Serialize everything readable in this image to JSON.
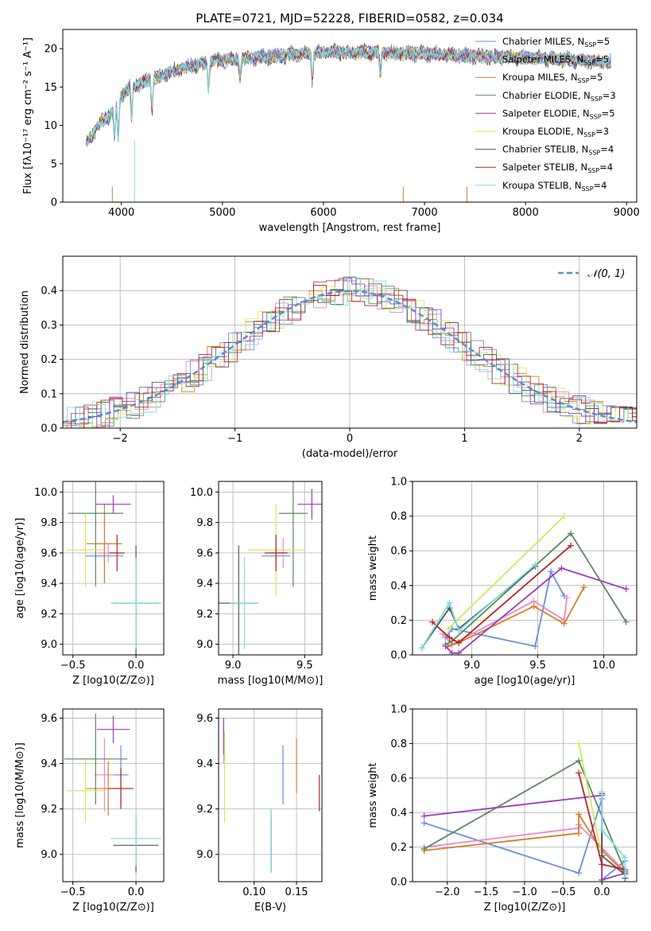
{
  "colors": [
    "#6a8fdb",
    "#e889c8",
    "#db7a2a",
    "#5a8a5e",
    "#9b3cb8",
    "#cfea5a",
    "#555555",
    "#b52525",
    "#7fdce4"
  ],
  "chart_data": [
    {
      "id": "spectrum",
      "type": "line",
      "title": "PLATE=0721, MJD=52228, FIBERID=0582, z=0.034",
      "xlabel": "wavelength [Angstrom, rest frame]",
      "ylabel": "Flux [fλ10⁻¹⁷ erg cm⁻² s⁻¹ A⁻¹]",
      "xlim": [
        3420,
        9100
      ],
      "ylim": [
        0,
        22.5
      ],
      "xticks": [
        4000,
        5000,
        6000,
        7000,
        8000,
        9000
      ],
      "yticks": [
        0,
        5,
        10,
        15,
        20
      ],
      "legend_position": "upper-right",
      "series": [
        {
          "name": "Chabrier MILES, N_SSP=5"
        },
        {
          "name": "Salpeter MILES, N_SSP=5"
        },
        {
          "name": "Kroupa MILES, N_SSP=5"
        },
        {
          "name": "Chabrier ELODIE, N_SSP=3"
        },
        {
          "name": "Salpeter ELODIE, N_SSP=5"
        },
        {
          "name": "Kroupa ELODIE, N_SSP=3"
        },
        {
          "name": "Chabrier STELIB, N_SSP=4"
        },
        {
          "name": "Salpeter STELIB, N_SSP=4"
        },
        {
          "name": "Kroupa STELIB, N_SSP=4"
        }
      ],
      "continuum": [
        [
          3650,
          8
        ],
        [
          3700,
          8.5
        ],
        [
          3800,
          10.5
        ],
        [
          3900,
          11.5
        ],
        [
          4000,
          14
        ],
        [
          4100,
          15
        ],
        [
          4200,
          15.5
        ],
        [
          4300,
          16
        ],
        [
          4500,
          17
        ],
        [
          4700,
          17.8
        ],
        [
          5000,
          18.5
        ],
        [
          5500,
          19
        ],
        [
          6000,
          19.5
        ],
        [
          6500,
          19.5
        ],
        [
          7000,
          19.3
        ],
        [
          7500,
          19
        ],
        [
          8000,
          18.8
        ],
        [
          8500,
          18.5
        ],
        [
          8850,
          18.2
        ]
      ]
    },
    {
      "id": "residuals",
      "type": "bar",
      "xlabel": "(data-model)/error",
      "ylabel": "Normed distribution",
      "xlim": [
        -2.5,
        2.5
      ],
      "ylim": [
        0,
        0.5
      ],
      "xticks": [
        -2,
        -1,
        0,
        1,
        2
      ],
      "yticks": [
        0.0,
        0.1,
        0.2,
        0.3,
        0.4
      ],
      "grid": true,
      "legend_position": "upper-right",
      "reference": {
        "name": "𝒩(0, 1)",
        "mean": 0,
        "sigma": 1
      }
    },
    {
      "id": "age-vs-Z",
      "type": "scatter",
      "xlabel": "Z [log10(Z/Z⊙)]",
      "ylabel": "age  [log10(age/yr)]",
      "xlim": [
        -0.58,
        0.22
      ],
      "ylim": [
        8.93,
        10.07
      ],
      "xticks": [
        -0.5,
        0.0
      ],
      "yticks": [
        9.0,
        9.2,
        9.4,
        9.6,
        9.8,
        10.0
      ],
      "grid": true,
      "points": [
        {
          "x": -0.25,
          "y": 9.58,
          "xerr": 0.15,
          "yerr": 0.05
        },
        {
          "x": -0.22,
          "y": 9.6,
          "xerr": 0.08,
          "yerr": 0.06
        },
        {
          "x": -0.25,
          "y": 9.66,
          "xerr": 0.14,
          "yerr": 0.26
        },
        {
          "x": -0.32,
          "y": 9.86,
          "xerr": 0.22,
          "yerr": 0.48
        },
        {
          "x": -0.18,
          "y": 9.92,
          "xerr": 0.14,
          "yerr": 0.06
        },
        {
          "x": -0.4,
          "y": 9.62,
          "xerr": 0.15,
          "yerr": 0.24
        },
        {
          "x": 0.0,
          "y": 9.27,
          "xerr": 0.18,
          "yerr": 0.38
        },
        {
          "x": -0.15,
          "y": 9.6,
          "xerr": 0.06,
          "yerr": 0.12
        },
        {
          "x": 0.0,
          "y": 9.27,
          "xerr": 0.2,
          "yerr": 0.3
        }
      ]
    },
    {
      "id": "age-vs-mass",
      "type": "scatter",
      "xlabel": "mass [log10(M/M⊙)]",
      "ylabel": "",
      "xlim": [
        8.9,
        9.62
      ],
      "ylim": [
        8.93,
        10.07
      ],
      "xticks": [
        9.0,
        9.5
      ],
      "yticks": [
        9.0,
        9.2,
        9.4,
        9.6,
        9.8,
        10.0
      ],
      "grid": true,
      "points": [
        {
          "x": 9.3,
          "y": 9.58,
          "xerr": 0.1,
          "yerr": 0.05
        },
        {
          "x": 9.35,
          "y": 9.6,
          "xerr": 0.05,
          "yerr": 0.1
        },
        {
          "x": 9.3,
          "y": 9.6,
          "xerr": 0.05,
          "yerr": 0.1
        },
        {
          "x": 9.42,
          "y": 9.86,
          "xerr": 0.1,
          "yerr": 0.48
        },
        {
          "x": 9.55,
          "y": 9.92,
          "xerr": 0.1,
          "yerr": 0.1
        },
        {
          "x": 9.3,
          "y": 9.62,
          "xerr": 0.2,
          "yerr": 0.3
        },
        {
          "x": 9.04,
          "y": 9.27,
          "xerr": 0.14,
          "yerr": 0.38
        },
        {
          "x": 9.3,
          "y": 9.6,
          "xerr": 0.08,
          "yerr": 0.12
        },
        {
          "x": 9.08,
          "y": 9.27,
          "xerr": 0.1,
          "yerr": 0.3
        }
      ]
    },
    {
      "id": "weight-vs-age",
      "type": "line",
      "xlabel": "age  [log10(age/yr)]",
      "ylabel": "mass weight",
      "xlim": [
        8.55,
        10.25
      ],
      "ylim": [
        0,
        1
      ],
      "xticks": [
        9.0,
        9.5,
        10.0
      ],
      "yticks": [
        0.0,
        0.2,
        0.4,
        0.6,
        0.8,
        1.0
      ],
      "grid": true,
      "series": [
        {
          "x": [
            8.8,
            8.85,
            9.48,
            9.6,
            9.7
          ],
          "y": [
            0.1,
            0.15,
            0.05,
            0.48,
            0.34
          ]
        },
        {
          "x": [
            8.78,
            8.85,
            9.47,
            9.7,
            9.72
          ],
          "y": [
            0.12,
            0.06,
            0.31,
            0.2,
            0.33
          ]
        },
        {
          "x": [
            8.82,
            8.9,
            9.47,
            9.7,
            9.85
          ],
          "y": [
            0.05,
            0.07,
            0.28,
            0.18,
            0.39
          ]
        },
        {
          "x": [
            8.8,
            8.85,
            9.75,
            10.17
          ],
          "y": [
            0.06,
            0.08,
            0.7,
            0.19
          ]
        },
        {
          "x": [
            8.8,
            8.85,
            8.9,
            9.68,
            10.17
          ],
          "y": [
            0.05,
            0.01,
            0.01,
            0.5,
            0.38
          ]
        },
        {
          "x": [
            8.82,
            9.7
          ],
          "y": [
            0.15,
            0.8
          ]
        },
        {
          "x": [
            8.62,
            8.83,
            8.9,
            9.48
          ],
          "y": [
            0.04,
            0.27,
            0.15,
            0.51
          ]
        },
        {
          "x": [
            8.7,
            8.83,
            8.9,
            9.75
          ],
          "y": [
            0.19,
            0.1,
            0.07,
            0.63
          ]
        },
        {
          "x": [
            8.62,
            8.83,
            8.9,
            9.48
          ],
          "y": [
            0.04,
            0.3,
            0.14,
            0.52
          ]
        }
      ]
    },
    {
      "id": "mass-vs-Z",
      "type": "scatter",
      "xlabel": "Z [log10(Z/Z⊙)]",
      "ylabel": "mass [log10(M/M⊙)]",
      "xlim": [
        -0.58,
        0.22
      ],
      "ylim": [
        8.88,
        9.64
      ],
      "xticks": [
        -0.5,
        0.0
      ],
      "yticks": [
        9.0,
        9.2,
        9.4,
        9.6
      ],
      "grid": true,
      "points": [
        {
          "x": -0.12,
          "y": 9.35,
          "xerr": 0.06,
          "yerr": 0.13
        },
        {
          "x": -0.25,
          "y": 9.35,
          "xerr": 0.08,
          "yerr": 0.16
        },
        {
          "x": -0.22,
          "y": 9.29,
          "xerr": 0.18,
          "yerr": 0.12
        },
        {
          "x": -0.32,
          "y": 9.42,
          "xerr": 0.25,
          "yerr": 0.2
        },
        {
          "x": -0.18,
          "y": 9.55,
          "xerr": 0.13,
          "yerr": 0.06
        },
        {
          "x": -0.4,
          "y": 9.28,
          "xerr": 0.15,
          "yerr": 0.14
        },
        {
          "x": 0.0,
          "y": 9.04,
          "xerr": 0.18,
          "yerr": 0.12
        },
        {
          "x": -0.12,
          "y": 9.29,
          "xerr": 0.1,
          "yerr": 0.09
        },
        {
          "x": 0.0,
          "y": 9.07,
          "xerr": 0.2,
          "yerr": 0.12
        }
      ]
    },
    {
      "id": "mass-vs-ebv",
      "type": "scatter",
      "xlabel": "E(B-V)",
      "ylabel": "",
      "xlim": [
        0.058,
        0.18
      ],
      "ylim": [
        8.88,
        9.64
      ],
      "xticks": [
        0.1,
        0.15
      ],
      "yticks": [
        9.0,
        9.2,
        9.4,
        9.6
      ],
      "grid": true,
      "points": [
        {
          "x": 0.134,
          "y": 9.35,
          "yerr": 0.13
        },
        {
          "x": 0.064,
          "y": 9.5,
          "yerr": 0.1
        },
        {
          "x": 0.15,
          "y": 9.39,
          "yerr": 0.12
        },
        {
          "x": 0.12,
          "y": 9.05,
          "yerr": 0.13
        },
        {
          "x": 0.064,
          "y": 9.52,
          "yerr": 0.08
        },
        {
          "x": 0.065,
          "y": 9.34,
          "yerr": 0.2
        },
        {
          "x": 0.12,
          "y": 9.04,
          "yerr": 0.12
        },
        {
          "x": 0.177,
          "y": 9.27,
          "yerr": 0.08
        },
        {
          "x": 0.12,
          "y": 9.06,
          "yerr": 0.14
        }
      ]
    },
    {
      "id": "weight-vs-Z",
      "type": "line",
      "xlabel": "Z [log10(Z/Z⊙)]",
      "ylabel": "mass weight",
      "xlim": [
        -2.45,
        0.45
      ],
      "ylim": [
        0,
        1
      ],
      "xticks": [
        -2.0,
        -1.5,
        -1.0,
        -0.5,
        0.0
      ],
      "yticks": [
        0.0,
        0.2,
        0.4,
        0.6,
        0.8,
        1.0
      ],
      "grid": true,
      "series": [
        {
          "x": [
            -2.3,
            -0.3,
            0.0,
            0.0,
            0.3
          ],
          "y": [
            0.34,
            0.05,
            0.48,
            0.01,
            0.12
          ]
        },
        {
          "x": [
            -2.3,
            -0.3,
            -0.3,
            0.3,
            0.3
          ],
          "y": [
            0.2,
            0.31,
            0.33,
            0.06,
            0.04
          ]
        },
        {
          "x": [
            -2.3,
            -0.3,
            -0.3,
            0.0,
            0.3
          ],
          "y": [
            0.18,
            0.28,
            0.39,
            0.18,
            0.05
          ]
        },
        {
          "x": [
            -2.3,
            -0.3,
            0.3
          ],
          "y": [
            0.19,
            0.7,
            0.06
          ]
        },
        {
          "x": [
            -2.3,
            0.0,
            0.0,
            0.3,
            0.3
          ],
          "y": [
            0.38,
            0.5,
            0.01,
            0.05,
            0.05
          ]
        },
        {
          "x": [
            -0.3,
            0.0
          ],
          "y": [
            0.8,
            0.15
          ]
        },
        {
          "x": [
            0.0,
            0.0,
            0.3,
            0.3
          ],
          "y": [
            0.51,
            0.15,
            0.04,
            0.02
          ]
        },
        {
          "x": [
            -0.3,
            0.0,
            0.3
          ],
          "y": [
            0.63,
            0.1,
            0.07
          ]
        },
        {
          "x": [
            0.0,
            0.0,
            0.3,
            0.3
          ],
          "y": [
            0.52,
            0.3,
            0.14,
            0.04
          ]
        }
      ]
    }
  ]
}
